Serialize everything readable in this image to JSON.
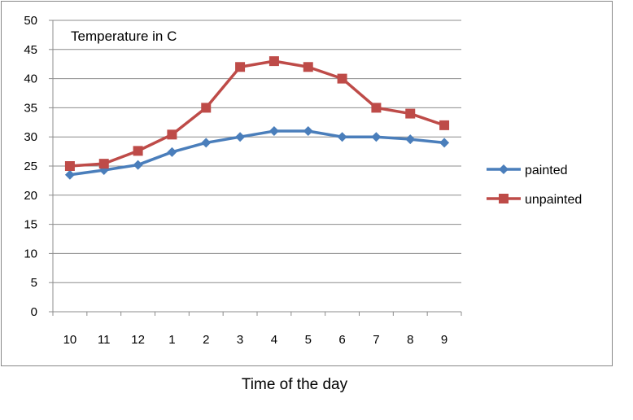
{
  "chart_data": {
    "type": "line",
    "title": "Temperature in C",
    "xlabel": "Time of the day",
    "ylabel": "",
    "categories": [
      "10",
      "11",
      "12",
      "1",
      "2",
      "3",
      "4",
      "5",
      "6",
      "7",
      "8",
      "9"
    ],
    "ylim": [
      0,
      50
    ],
    "yticks": [
      0,
      5,
      10,
      15,
      20,
      25,
      30,
      35,
      40,
      45,
      50
    ],
    "grid": true,
    "legend_position": "right",
    "series": [
      {
        "name": "painted",
        "color": "#4A7EBB",
        "marker": "diamond",
        "values": [
          23.5,
          24.3,
          25.2,
          27.4,
          29,
          30,
          31,
          31,
          30,
          30,
          29.6,
          29
        ]
      },
      {
        "name": "unpainted",
        "color": "#BE4B48",
        "marker": "square",
        "values": [
          25,
          25.4,
          27.6,
          30.4,
          35,
          42,
          43,
          42,
          40,
          35,
          34,
          32
        ]
      }
    ]
  }
}
